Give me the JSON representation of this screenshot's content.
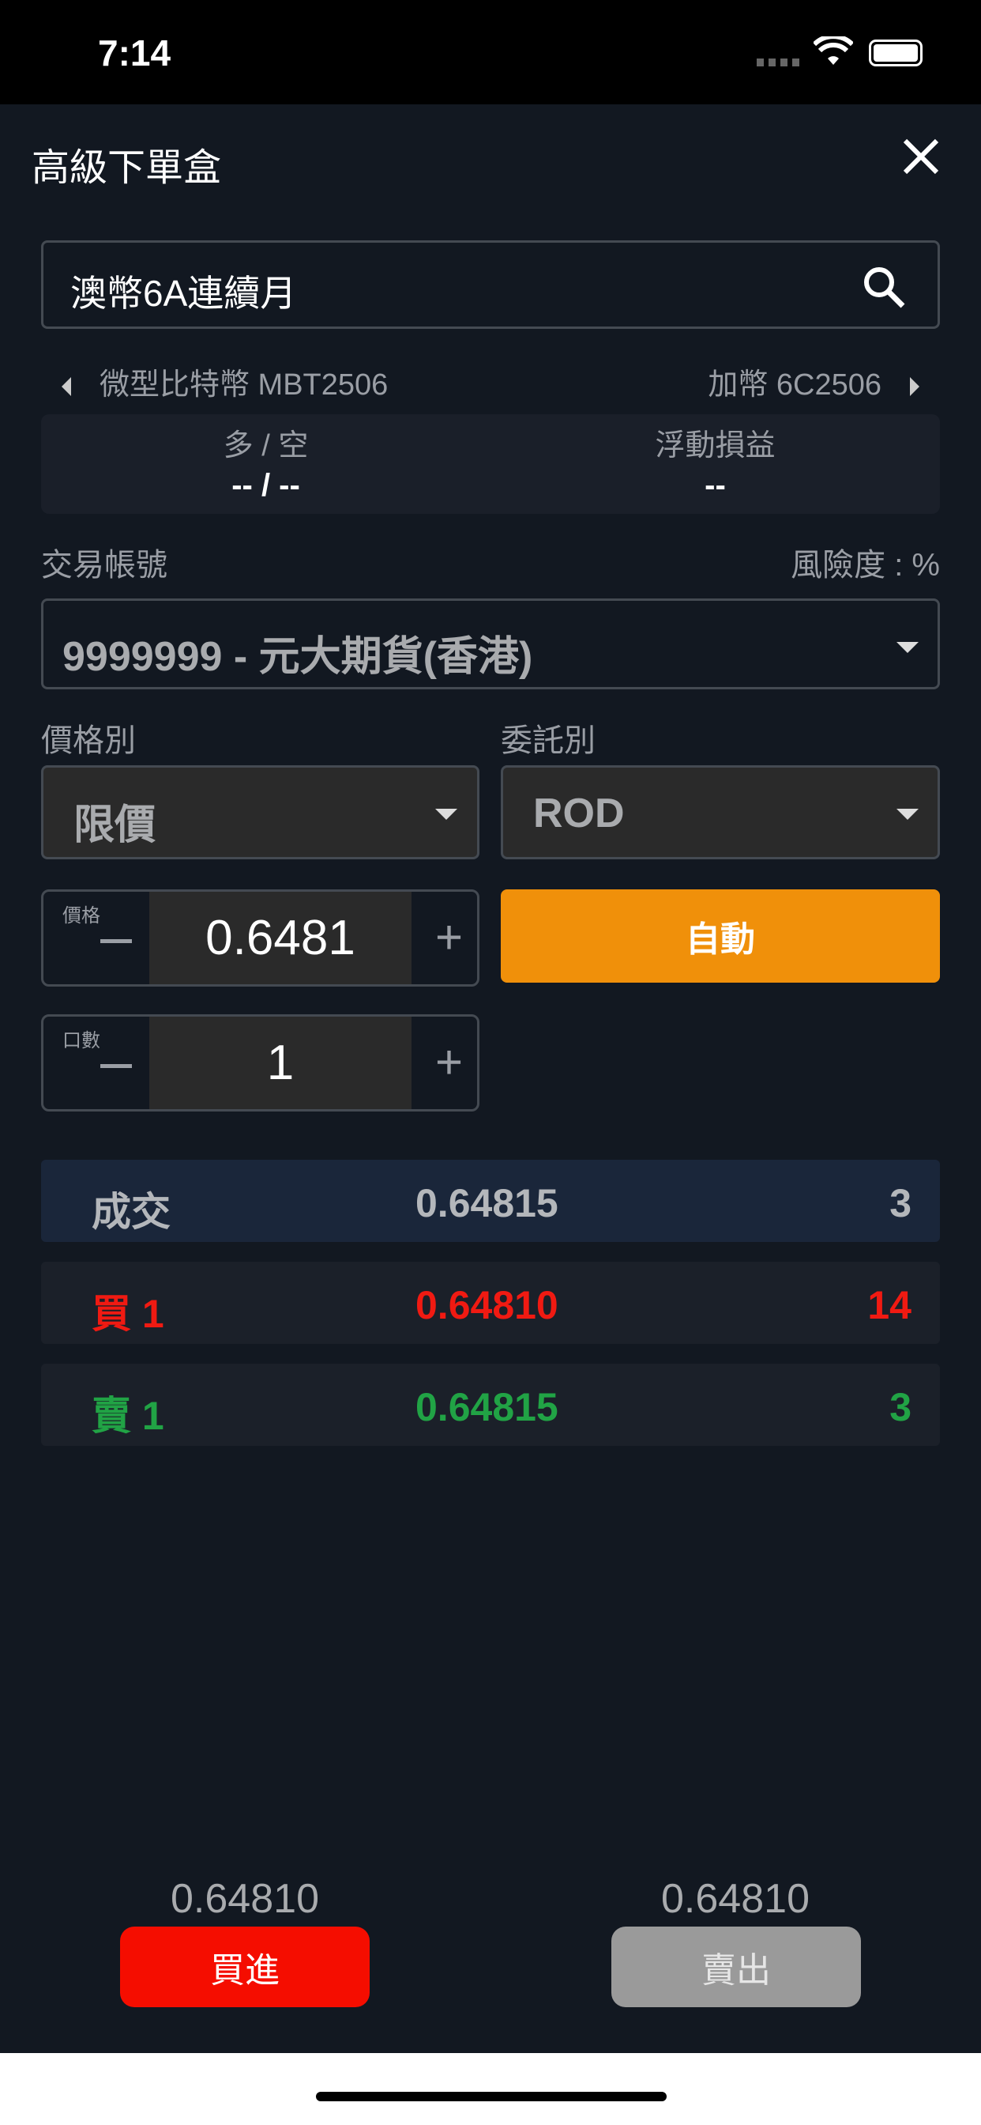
{
  "status_bar": {
    "time": "7:14"
  },
  "header": {
    "title": "高級下單盒"
  },
  "search": {
    "value": "澳幣6A連續月"
  },
  "nav": {
    "prev": "微型比特幣 MBT2506",
    "next": "加幣 6C2506"
  },
  "position": {
    "long_short_label": "多 / 空",
    "long_short_value": "-- / --",
    "pnl_label": "浮動損益",
    "pnl_value": "--"
  },
  "account": {
    "label": "交易帳號",
    "risk_label": "風險度 : %",
    "value": "9999999 - 元大期貨(香港)"
  },
  "price_type": {
    "label": "價格別",
    "value": "限價"
  },
  "order_type": {
    "label": "委託別",
    "value": "ROD"
  },
  "price_stepper": {
    "label": "價格",
    "value": "0.6481"
  },
  "qty_stepper": {
    "label": "口數",
    "value": "1"
  },
  "auto_button": "自動",
  "quotes": [
    {
      "label": "成交",
      "price": "0.64815",
      "qty": "3",
      "color": "#b4b7bb"
    },
    {
      "label": "買 1",
      "price": "0.64810",
      "qty": "14",
      "color": "#f01a12"
    },
    {
      "label": "賣 1",
      "price": "0.64815",
      "qty": "3",
      "color": "#21a345"
    }
  ],
  "buy": {
    "price": "0.64810",
    "label": "買進",
    "color": "#f50d00"
  },
  "sell": {
    "price": "0.64810",
    "label": "賣出",
    "color": "#9a9a9a"
  }
}
